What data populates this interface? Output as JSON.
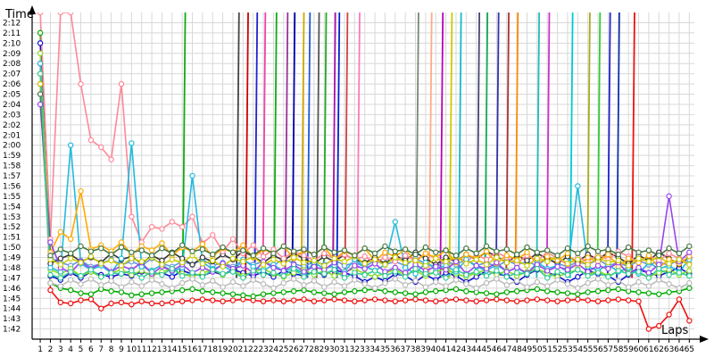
{
  "chart_data": {
    "type": "line",
    "ylabel": "Time",
    "xlabel": "Laps",
    "grid": true,
    "x_ticks": [
      1,
      2,
      3,
      4,
      5,
      6,
      7,
      8,
      9,
      10,
      11,
      12,
      13,
      14,
      15,
      16,
      17,
      18,
      19,
      20,
      21,
      22,
      23,
      24,
      25,
      26,
      27,
      28,
      29,
      30,
      31,
      32,
      33,
      34,
      35,
      36,
      37,
      38,
      39,
      40,
      41,
      42,
      43,
      44,
      45,
      46,
      47,
      48,
      49,
      50,
      51,
      52,
      53,
      54,
      55,
      56,
      57,
      58,
      59,
      60,
      61,
      62,
      63,
      64,
      65
    ],
    "y_ticks": [
      "1:42",
      "1:43",
      "1:44",
      "1:45",
      "1:46",
      "1:47",
      "1:48",
      "1:49",
      "1:50",
      "1:51",
      "1:52",
      "1:53",
      "1:54",
      "1:55",
      "1:56",
      "1:57",
      "1:58",
      "1:59",
      "2:00",
      "2:01",
      "2:02",
      "2:03",
      "2:04",
      "2:05",
      "2:06",
      "2:07",
      "2:08",
      "2:09",
      "2:10",
      "2:11",
      "2:12"
    ],
    "ylim_seconds": [
      101,
      133
    ],
    "xlim": [
      0.2,
      65.5
    ],
    "series": [
      {
        "color": "#ee1111",
        "values": [
          128,
          105.8,
          104.6,
          104.5,
          104.8,
          104.9,
          104.0,
          104.5,
          104.6,
          104.4,
          104.7,
          104.5,
          104.5,
          104.6,
          104.7,
          104.8,
          104.9,
          104.8,
          104.7,
          104.8,
          104.9,
          104.8,
          104.7,
          104.8,
          104.7,
          104.8,
          104.9,
          104.7,
          104.8,
          104.9,
          104.8,
          104.7,
          104.8,
          104.9,
          104.8,
          104.7,
          104.8,
          104.9,
          104.8,
          104.7,
          104.8,
          104.9,
          104.8,
          104.7,
          104.8,
          104.9,
          104.8,
          104.7,
          104.8,
          104.9,
          104.8,
          104.7,
          104.8,
          104.9,
          104.8,
          104.7,
          104.8,
          104.9,
          104.8,
          104.7,
          102.0,
          102.3,
          103.4,
          104.9,
          102.8
        ]
      },
      {
        "color": "#00aa00",
        "values": [
          131,
          106.5,
          106.0,
          105.8,
          105.5,
          105.4,
          105.9,
          105.7,
          105.6,
          105.3,
          105.4,
          105.5,
          105.6,
          105.7,
          105.8,
          105.9,
          105.7,
          105.6,
          105.5,
          105.4,
          105.3,
          105.2,
          105.4,
          105.5,
          105.6,
          105.7,
          105.8,
          105.6,
          105.5,
          105.4,
          105.6,
          105.7,
          105.8,
          105.9,
          105.7,
          105.6,
          105.5,
          105.4,
          105.6,
          105.7,
          105.8,
          105.9,
          105.7,
          105.6,
          105.5,
          105.4,
          105.6,
          105.7,
          105.8,
          105.9,
          105.7,
          105.6,
          105.5,
          105.4,
          105.6,
          105.7,
          105.8,
          105.9,
          105.7,
          105.6,
          105.5,
          105.4,
          105.6,
          105.7,
          106.0
        ]
      },
      {
        "color": "#1111cc",
        "values": [
          130,
          107.2,
          106.8,
          107.5,
          107.0,
          107.6,
          107.3,
          107.1,
          107.4,
          107.2,
          107.6,
          107.3,
          107.5,
          107.1,
          107.7,
          107.4,
          107.2,
          107.6,
          107.3,
          107.8,
          107.5,
          107.2,
          107.6,
          107.1,
          107.7,
          107.4,
          107.2,
          107.6,
          107.3,
          107.8,
          107.5,
          107.2,
          106.6,
          107.1,
          106.7,
          107.4,
          107.2,
          106.6,
          107.3,
          106.8,
          107.5,
          107.2,
          106.6,
          107.1,
          107.7,
          107.4,
          107.2,
          106.6,
          107.3,
          107.8,
          107.5,
          107.2,
          106.6,
          107.1,
          107.7,
          107.4,
          107.2,
          106.6,
          107.3,
          107.8,
          107.5,
          107.2,
          107.6,
          108.0,
          107.4
        ]
      },
      {
        "color": "#6699dd",
        "values": [
          127,
          109.0,
          108.5,
          108.2,
          108.7,
          108.1,
          108.4,
          108.8,
          108.3,
          108.6,
          108.2,
          108.9,
          108.4,
          108.1,
          108.6,
          108.3,
          108.8,
          108.2,
          108.5,
          108.1,
          108.7,
          108.3,
          108.6,
          108.2,
          108.9,
          108.4,
          108.1,
          108.6,
          108.3,
          108.8,
          108.2,
          108.5,
          108.1,
          108.7,
          108.3,
          108.6,
          108.2,
          108.9,
          108.4,
          108.1,
          108.6,
          108.3,
          108.8,
          108.2,
          108.5,
          108.1,
          108.7,
          108.3,
          108.6,
          108.2,
          108.9,
          108.4,
          108.1,
          108.6,
          108.3,
          108.8,
          108.2,
          108.5,
          108.1,
          108.7,
          108.3,
          108.6,
          108.2,
          108.9,
          108.4
        ]
      },
      {
        "color": "#88dd22",
        "values": [
          129,
          107.8,
          107.4,
          107.9,
          107.2,
          107.6,
          107.1,
          107.5,
          107.8,
          107.3,
          107.7,
          107.2,
          107.6,
          107.9,
          107.4,
          107.1,
          107.5,
          107.8,
          107.3,
          107.7,
          107.2,
          107.6,
          107.9,
          107.4,
          107.1,
          107.5,
          107.8,
          107.3,
          107.7,
          107.2,
          107.6,
          107.9,
          107.4,
          107.1,
          107.5,
          107.8,
          107.3,
          107.7,
          107.2,
          107.6,
          107.9,
          107.4,
          107.1,
          107.5,
          107.8,
          107.3,
          107.7,
          107.2,
          107.6,
          107.9,
          107.4,
          107.1,
          107.5,
          107.8,
          107.3,
          107.7,
          107.2,
          107.6,
          107.9,
          107.4,
          107.1,
          107.5,
          107.8,
          107.3,
          107.7
        ]
      },
      {
        "color": "#333333",
        "values": [
          126,
          108.4,
          108.9,
          109.3,
          108.6,
          109.0,
          108.5,
          109.4,
          108.8,
          109.1,
          108.4,
          109.2,
          108.7,
          109.5,
          108.9,
          108.3,
          109.0,
          108.6,
          109.3,
          108.8,
          109.6,
          109.1,
          108.5,
          109.2,
          108.7,
          109.4,
          108.9,
          108.4,
          109.1,
          108.6,
          109.3,
          108.8,
          108.5,
          109.0,
          108.4,
          109.2,
          108.7,
          109.5,
          108.9,
          108.3,
          109.0,
          108.6,
          109.3,
          108.8,
          109.6,
          109.1,
          108.5,
          109.2,
          108.7,
          109.4,
          108.9,
          108.4,
          109.1,
          108.6,
          109.3,
          108.8,
          109.5,
          109.0,
          108.4,
          109.2,
          108.7,
          109.5,
          108.9,
          108.3,
          109.0
        ]
      },
      {
        "color": "#ff8899",
        "values": [
          133,
          110.8,
          133,
          133,
          126.0,
          120.5,
          119.8,
          118.6,
          126.0,
          113.0,
          110.5,
          112.0,
          111.8,
          112.5,
          112.0,
          113.0,
          110.4,
          111.2,
          109.6,
          110.8,
          109.4,
          110.2,
          109.1,
          109.8,
          108.9,
          109.6,
          109.2,
          108.7,
          109.4,
          108.9,
          109.3,
          108.8,
          109.1,
          108.5,
          109.0,
          108.6,
          109.2,
          108.7,
          109.4,
          108.9,
          108.5,
          109.1,
          108.6,
          109.3,
          108.8,
          109.5,
          109.0,
          108.4,
          109.2,
          108.7,
          109.5,
          108.9,
          108.3,
          109.0,
          108.6,
          109.3,
          108.8,
          109.6,
          109.1,
          108.5,
          109.2,
          108.7,
          109.4,
          108.9,
          108.4
        ]
      },
      {
        "color": "#22bbdd",
        "values": [
          128,
          108.0,
          107.6,
          120.0,
          108.4,
          107.8,
          108.2,
          107.5,
          108.9,
          120.2,
          108.1,
          107.7,
          108.3,
          107.6,
          108.0,
          117.0,
          108.5,
          107.9,
          108.2,
          107.6,
          108.8,
          108.1,
          107.7,
          108.3,
          107.6,
          108.0,
          107.4,
          108.5,
          107.9,
          108.2,
          107.6,
          108.8,
          108.1,
          107.7,
          108.3,
          112.5,
          108.0,
          107.4,
          108.5,
          107.9,
          108.2,
          107.6,
          108.8,
          108.1,
          107.7,
          108.3,
          107.6,
          108.0,
          107.4,
          108.5,
          107.9,
          108.2,
          107.6,
          116.0,
          108.1,
          107.7,
          108.3,
          107.6,
          108.0,
          107.4,
          108.5,
          107.9,
          108.2,
          107.6,
          108.8
        ]
      },
      {
        "color": "#bbbbbb",
        "values": [
          125,
          106.5,
          106.2,
          106.8,
          106.4,
          106.9,
          106.3,
          106.7,
          106.1,
          106.6,
          106.2,
          106.8,
          106.4,
          106.0,
          106.5,
          106.9,
          106.3,
          106.7,
          106.1,
          106.6,
          106.2,
          106.8,
          106.4,
          106.0,
          106.5,
          106.9,
          106.3,
          106.7,
          106.1,
          106.6,
          106.2,
          106.8,
          106.4,
          106.0,
          106.5,
          106.9,
          106.3,
          106.7,
          106.1,
          106.6,
          106.2,
          106.8,
          106.4,
          106.0,
          106.5,
          106.9,
          106.3,
          106.7,
          106.1,
          106.6,
          106.2,
          106.8,
          106.4,
          106.0,
          106.5,
          106.9,
          106.3,
          106.7,
          106.1,
          106.6,
          106.2,
          106.8,
          106.4,
          106.0,
          106.5
        ]
      },
      {
        "color": "#ffaa00",
        "values": [
          127,
          109.5,
          111.5,
          110.8,
          115.5,
          109.8,
          110.2,
          109.6,
          110.5,
          109.3,
          110.1,
          109.7,
          110.4,
          109.2,
          110.0,
          109.6,
          110.3,
          109.1,
          109.9,
          109.5,
          110.2,
          109.0,
          109.8,
          109.4,
          110.1,
          108.9,
          109.7,
          109.3,
          110.0,
          108.8,
          109.6,
          109.2,
          109.9,
          108.7,
          109.5,
          109.1,
          109.8,
          108.6,
          109.4,
          109.0,
          109.7,
          108.5,
          109.3,
          108.9,
          109.6,
          108.4,
          109.2,
          108.8,
          109.5,
          108.3,
          109.1,
          108.7,
          109.4,
          108.2,
          109.0,
          108.6,
          109.3,
          108.1,
          108.9,
          108.5,
          109.2,
          108.0,
          108.8,
          108.4,
          109.1
        ]
      },
      {
        "color": "#9944ee",
        "values": [
          124,
          110.5,
          108.0,
          107.5,
          108.6,
          107.9,
          108.4,
          107.6,
          108.2,
          107.8,
          108.5,
          107.4,
          108.1,
          107.7,
          108.3,
          107.5,
          108.0,
          107.6,
          108.4,
          107.9,
          108.2,
          107.5,
          108.6,
          108.0,
          107.7,
          108.3,
          107.6,
          108.1,
          107.8,
          108.5,
          107.4,
          108.2,
          107.9,
          108.4,
          107.6,
          108.0,
          107.5,
          108.3,
          107.7,
          108.1,
          107.8,
          108.6,
          107.4,
          108.2,
          107.9,
          108.5,
          107.6,
          108.0,
          107.5,
          108.3,
          107.7,
          108.1,
          107.8,
          108.4,
          107.6,
          108.2,
          107.9,
          108.5,
          107.4,
          108.0,
          107.5,
          108.3,
          115.0,
          108.6,
          109.5
        ]
      },
      {
        "color": "#cccc00",
        "values": [
          126,
          108.8,
          108.3,
          108.9,
          108.5,
          109.1,
          108.4,
          108.7,
          108.2,
          108.9,
          108.6,
          109.0,
          108.3,
          108.8,
          108.5,
          109.2,
          108.4,
          108.7,
          108.1,
          108.9,
          108.6,
          109.1,
          108.3,
          108.8,
          108.4,
          109.0,
          108.5,
          108.7,
          108.2,
          108.9,
          108.6,
          109.1,
          108.4,
          108.8,
          108.3,
          109.0,
          108.5,
          108.7,
          108.2,
          108.9,
          108.6,
          109.1,
          108.4,
          108.8,
          108.3,
          109.0,
          108.5,
          108.7,
          108.2,
          108.9,
          108.6,
          109.1,
          108.4,
          108.8,
          108.3,
          109.0,
          108.5,
          108.7,
          108.2,
          108.9,
          108.6,
          109.1,
          108.4,
          108.8,
          108.3
        ]
      },
      {
        "color": "#447744",
        "values": [
          125,
          109.2,
          109.8,
          109.4,
          110.1,
          109.6,
          109.9,
          109.3,
          110.0,
          109.5,
          109.7,
          109.2,
          109.9,
          109.4,
          110.2,
          109.6,
          109.8,
          109.3,
          110.0,
          109.5,
          109.7,
          109.2,
          109.9,
          109.4,
          110.1,
          109.6,
          109.8,
          109.3,
          110.0,
          109.5,
          109.7,
          109.2,
          109.9,
          109.4,
          110.1,
          109.6,
          109.8,
          109.3,
          110.0,
          109.5,
          109.7,
          109.2,
          109.9,
          109.4,
          110.1,
          109.6,
          109.8,
          109.3,
          110.0,
          109.5,
          109.7,
          109.2,
          109.9,
          109.4,
          110.1,
          109.6,
          109.8,
          109.3,
          110.0,
          109.5,
          109.7,
          109.2,
          109.9,
          109.4,
          110.1
        ]
      },
      {
        "color": "#33cc99",
        "values": [
          127,
          107.3,
          107.0,
          107.6,
          107.2,
          107.8,
          107.1,
          107.5,
          107.4,
          107.7,
          107.0,
          107.6,
          107.3,
          107.9,
          107.2,
          107.5,
          107.1,
          107.8,
          107.4,
          107.6,
          107.0,
          107.7,
          107.3,
          107.5,
          107.2,
          107.9,
          107.1,
          107.6,
          107.4,
          107.8,
          107.0,
          107.5,
          107.3,
          107.7,
          107.2,
          107.6,
          107.1,
          107.9,
          107.4,
          107.5,
          107.0,
          107.8,
          107.3,
          107.6,
          107.2,
          107.7,
          107.1,
          107.5,
          107.4,
          107.9,
          107.0,
          107.6,
          107.3,
          107.8,
          107.2,
          107.5,
          107.1,
          107.7,
          107.4,
          107.6,
          107.0,
          107.9,
          107.3,
          107.5,
          107.2
        ]
      }
    ],
    "spikes": [
      {
        "color": "#11aa11",
        "x": 15.3
      },
      {
        "color": "#444444",
        "x": 20.6
      },
      {
        "color": "#cc0000",
        "x": 21.5
      },
      {
        "color": "#2222cc",
        "x": 22.4
      },
      {
        "color": "#ee44aa",
        "x": 23.2
      },
      {
        "color": "#11aa11",
        "x": 24.3
      },
      {
        "color": "#993399",
        "x": 25.4
      },
      {
        "color": "#0000aa",
        "x": 26.1
      },
      {
        "color": "#ccaa00",
        "x": 27.0
      },
      {
        "color": "#2255dd",
        "x": 27.6
      },
      {
        "color": "#555555",
        "x": 28.5
      },
      {
        "color": "#22aa22",
        "x": 29.2
      },
      {
        "color": "#aa11aa",
        "x": 30.1
      },
      {
        "color": "#0022cc",
        "x": 30.5
      },
      {
        "color": "#cc4444",
        "x": 31.3
      },
      {
        "color": "#ff77bb",
        "x": 32.5
      },
      {
        "color": "#778877",
        "x": 38.3
      },
      {
        "color": "#ffaa88",
        "x": 39.6
      },
      {
        "color": "#bb00bb",
        "x": 40.7
      },
      {
        "color": "#cccc00",
        "x": 41.6
      },
      {
        "color": "#11bbcc",
        "x": 42.5
      },
      {
        "color": "#444477",
        "x": 44.3
      },
      {
        "color": "#11aa55",
        "x": 45.1
      },
      {
        "color": "#3333aa",
        "x": 46.2
      },
      {
        "color": "#aa3333",
        "x": 47.2
      },
      {
        "color": "#ff8800",
        "x": 48.1
      },
      {
        "color": "#22bbbb",
        "x": 50.2
      },
      {
        "color": "#cc33cc",
        "x": 51.2
      },
      {
        "color": "#00cccc",
        "x": 53.5
      },
      {
        "color": "#aaaa22",
        "x": 55.2
      },
      {
        "color": "#33cc33",
        "x": 56.2
      },
      {
        "color": "#2222cc",
        "x": 57.2
      },
      {
        "color": "#1133aa",
        "x": 58.1
      },
      {
        "color": "#ee1111",
        "x": 59.6
      }
    ]
  }
}
